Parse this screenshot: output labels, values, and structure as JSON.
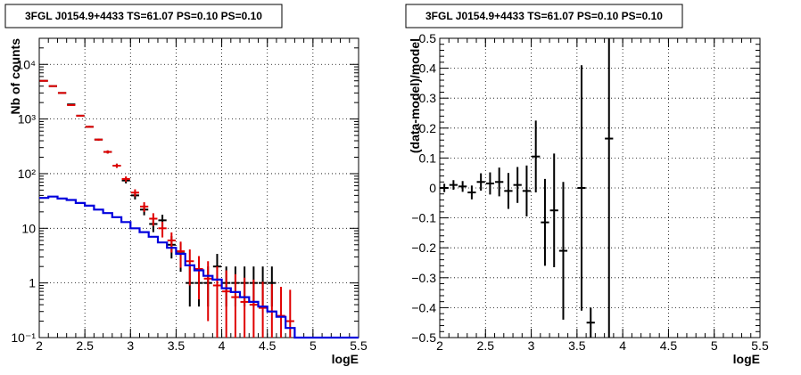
{
  "chart_data": [
    {
      "type": "step",
      "title": "3FGL J0154.9+4433 TS=61.07 PS=0.10 PS=0.10",
      "xlabel": "logE",
      "ylabel": "Nb of counts",
      "xlim": [
        2,
        5.5
      ],
      "ylim": [
        0.1,
        30000
      ],
      "yscale": "log",
      "grid": true,
      "x_ticks": [
        "2",
        "2.5",
        "3",
        "3.5",
        "4",
        "4.5",
        "5",
        "5.5"
      ],
      "y_ticks": [
        "10⁻¹",
        "1",
        "10",
        "10²",
        "10³",
        "10⁴"
      ],
      "series": [
        {
          "type": "errorbar",
          "color": "#000000",
          "x": [
            2.05,
            2.15,
            2.25,
            2.35,
            2.45,
            2.55,
            2.65,
            2.75,
            2.85,
            2.95,
            3.05,
            3.15,
            3.25,
            3.35,
            3.45,
            3.55,
            3.65,
            3.75,
            3.85,
            3.95,
            4.05,
            4.15,
            4.25,
            4.35,
            4.45,
            4.55
          ],
          "y": [
            5000,
            4000,
            3000,
            1850,
            1150,
            720,
            420,
            250,
            140,
            75,
            40,
            22,
            12,
            14,
            5,
            3.5,
            1.0,
            1.0,
            1.0,
            2.0,
            1.0,
            1.0,
            1.0,
            1.0,
            1.0,
            1.0
          ],
          "yerr_low": [
            70,
            63,
            55,
            43,
            34,
            27,
            20,
            16,
            12,
            8.7,
            6.3,
            4.7,
            3.5,
            3.7,
            2.2,
            1.9,
            0.63,
            0.63,
            0.63,
            0.9,
            0.63,
            0.63,
            0.63,
            0.63,
            0.63,
            0.63
          ],
          "yerr_high": [
            70,
            63,
            55,
            43,
            34,
            27,
            20,
            16,
            12,
            8.7,
            6.3,
            4.7,
            3.5,
            3.7,
            2.2,
            1.9,
            1.0,
            1.0,
            1.0,
            1.4,
            1.0,
            1.0,
            1.0,
            1.0,
            1.0,
            1.0
          ]
        },
        {
          "type": "errorbar",
          "color": "#e00000",
          "x": [
            2.05,
            2.15,
            2.25,
            2.35,
            2.45,
            2.55,
            2.65,
            2.75,
            2.85,
            2.95,
            3.05,
            3.15,
            3.25,
            3.35,
            3.45,
            3.55,
            3.65,
            3.75,
            3.85,
            3.95,
            4.05,
            4.15,
            4.25,
            4.35,
            4.45,
            4.55,
            4.65,
            4.75
          ],
          "y": [
            5000,
            4000,
            3000,
            1800,
            1150,
            720,
            420,
            250,
            140,
            80,
            45,
            25,
            15,
            10,
            6,
            3.8,
            2.5,
            1.8,
            1.2,
            0.9,
            0.7,
            0.55,
            0.45,
            0.4,
            0.35,
            0.3,
            0.25,
            0.2
          ],
          "yerr_low": [
            70,
            63,
            55,
            42,
            34,
            27,
            20,
            16,
            12,
            9,
            6.7,
            5,
            3.9,
            3.2,
            2.4,
            1.9,
            1.6,
            1.3,
            1.0,
            0.85,
            0.6,
            0.45,
            0.37,
            0.33,
            0.29,
            0.25,
            0.21,
            0.17
          ],
          "yerr_high": [
            70,
            63,
            55,
            42,
            34,
            27,
            20,
            16,
            12,
            9,
            6.7,
            5,
            3.9,
            3.2,
            2.4,
            1.9,
            1.6,
            1.3,
            1.3,
            1.1,
            1.0,
            0.9,
            0.8,
            0.75,
            0.7,
            0.65,
            0.6,
            0.55
          ]
        },
        {
          "type": "step",
          "color": "#0000dd",
          "x_edges": [
            2.0,
            2.1,
            2.2,
            2.3,
            2.4,
            2.5,
            2.6,
            2.7,
            2.8,
            2.9,
            3.0,
            3.1,
            3.2,
            3.3,
            3.4,
            3.5,
            3.6,
            3.7,
            3.8,
            3.9,
            4.0,
            4.1,
            4.2,
            4.3,
            4.4,
            4.5,
            4.6,
            4.7,
            4.8,
            5.5
          ],
          "y": [
            36,
            38,
            35,
            33,
            29,
            26,
            22,
            19,
            16,
            13,
            10,
            8.5,
            7,
            5.5,
            4.4,
            3.4,
            2.1,
            1.7,
            1.35,
            1.15,
            0.8,
            0.68,
            0.55,
            0.45,
            0.37,
            0.3,
            0.24,
            0.15,
            0.1
          ]
        }
      ]
    },
    {
      "type": "errorbar",
      "title": "3FGL J0154.9+4433 TS=61.07 PS=0.10 PS=0.10",
      "xlabel": "logE",
      "ylabel": "(data-model)/model",
      "xlim": [
        2,
        5.5
      ],
      "ylim": [
        -0.5,
        0.5
      ],
      "grid": true,
      "x_ticks": [
        "2",
        "2.5",
        "3",
        "3.5",
        "4",
        "4.5",
        "5",
        "5.5"
      ],
      "y_ticks": [
        "−0.5",
        "−0.4",
        "−0.3",
        "−0.2",
        "−0.1",
        "0",
        "0.1",
        "0.2",
        "0.3",
        "0.4",
        "0.5"
      ],
      "series": [
        {
          "color": "#000000",
          "x": [
            2.05,
            2.15,
            2.25,
            2.35,
            2.45,
            2.55,
            2.65,
            2.75,
            2.85,
            2.95,
            3.05,
            3.15,
            3.25,
            3.35,
            3.55,
            3.65,
            3.85
          ],
          "y": [
            0.0,
            0.01,
            0.005,
            -0.015,
            0.02,
            0.015,
            0.02,
            -0.01,
            0.01,
            -0.01,
            0.105,
            -0.115,
            -0.075,
            -0.21,
            0.0,
            -0.45,
            0.165
          ],
          "yerr_low": [
            0.014,
            0.016,
            0.018,
            0.023,
            0.029,
            0.037,
            0.048,
            0.06,
            0.06,
            0.085,
            0.12,
            0.145,
            0.19,
            0.23,
            0.41,
            0.05,
            0.665
          ],
          "yerr_high": [
            0.014,
            0.016,
            0.018,
            0.023,
            0.029,
            0.037,
            0.048,
            0.06,
            0.06,
            0.085,
            0.12,
            0.145,
            0.19,
            0.23,
            0.41,
            0.05,
            0.335
          ]
        }
      ]
    }
  ]
}
